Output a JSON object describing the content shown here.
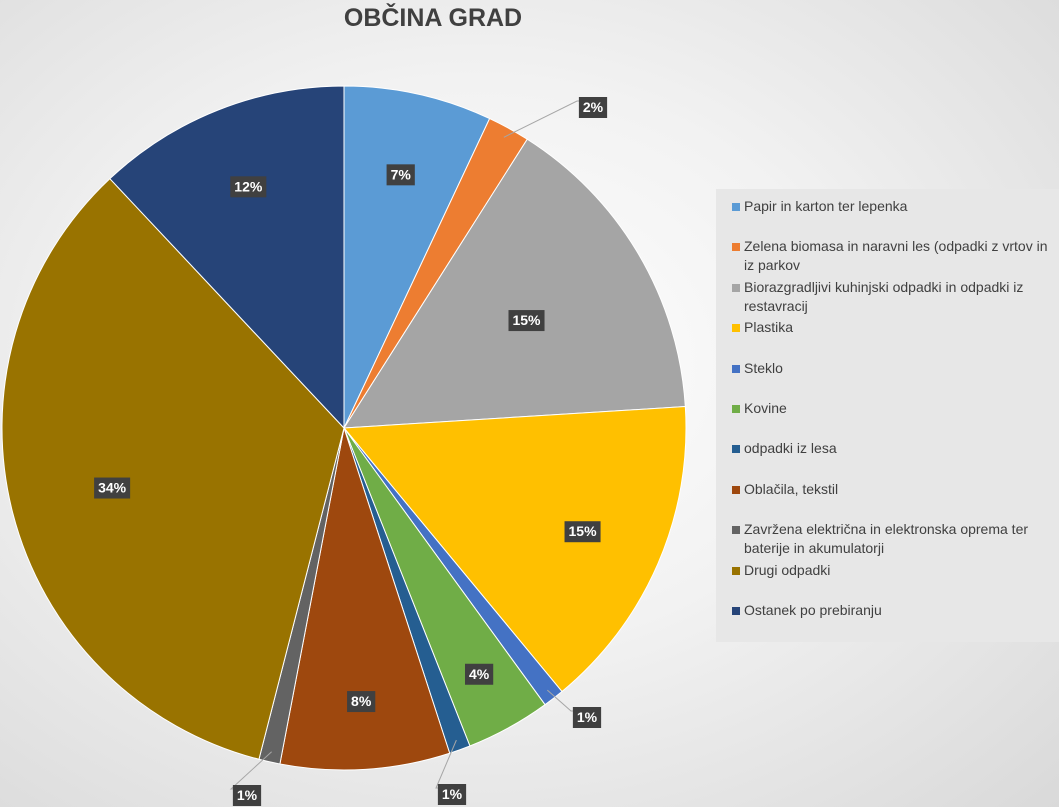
{
  "chart_data": {
    "type": "pie",
    "title": "OBČINA GRAD",
    "legend_position": "right",
    "slices": [
      {
        "name": "Papir in karton ter lepenka",
        "value": 7,
        "label": "7%",
        "color": "#5b9bd5"
      },
      {
        "name": "Zelena biomasa in naravni les (odpadki z vrtov in iz parkov",
        "value": 2,
        "label": "2%",
        "color": "#ed7d31"
      },
      {
        "name": "Biorazgradljivi kuhinjski odpadki in odpadki iz restavracij",
        "value": 15,
        "label": "15%",
        "color": "#a5a5a5"
      },
      {
        "name": "Plastika",
        "value": 15,
        "label": "15%",
        "color": "#ffc000"
      },
      {
        "name": "Steklo",
        "value": 1,
        "label": "1%",
        "color": "#4472c4"
      },
      {
        "name": "Kovine",
        "value": 4,
        "label": "4%",
        "color": "#70ad47"
      },
      {
        "name": "odpadki iz lesa",
        "value": 1,
        "label": "1%",
        "color": "#255e91"
      },
      {
        "name": "Oblačila, tekstil",
        "value": 8,
        "label": "8%",
        "color": "#9e480e"
      },
      {
        "name": "Zavržena električna in elektronska oprema ter baterije in akumulatorji",
        "value": 1,
        "label": "1%",
        "color": "#636363"
      },
      {
        "name": "Drugi odpadki",
        "value": 34,
        "label": "34%",
        "color": "#997300"
      },
      {
        "name": "Ostanek po prebiranju",
        "value": 12,
        "label": "12%",
        "color": "#264478"
      }
    ]
  }
}
